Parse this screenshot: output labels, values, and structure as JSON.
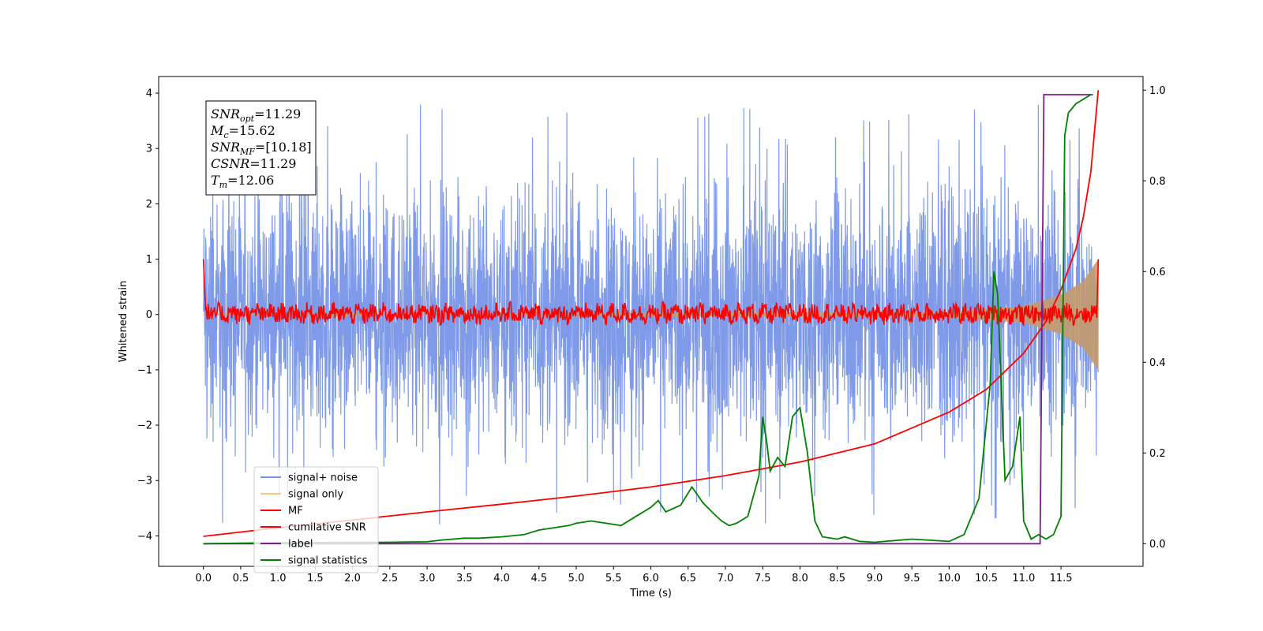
{
  "chart_data": {
    "type": "line",
    "xlabel": "Time (s)",
    "ylabel": "Whitened strain",
    "xlim": [
      -0.6,
      12.6
    ],
    "ylim": [
      -4.55,
      4.3
    ],
    "y2lim": [
      -0.05,
      1.03
    ],
    "x_ticks": [
      0.0,
      0.5,
      1.0,
      1.5,
      2.0,
      2.5,
      3.0,
      3.5,
      4.0,
      4.5,
      5.0,
      5.5,
      6.0,
      6.5,
      7.0,
      7.5,
      8.0,
      8.5,
      9.0,
      9.5,
      10.0,
      10.5,
      11.0,
      11.5
    ],
    "x_tick_labels": [
      "0.0",
      "0.5",
      "1.0",
      "1.5",
      "2.0",
      "2.5",
      "3.0",
      "3.5",
      "4.0",
      "4.5",
      "5.0",
      "5.5",
      "6.0",
      "6.5",
      "7.0",
      "7.5",
      "8.0",
      "8.5",
      "9.0",
      "9.5",
      "10.0",
      "10.5",
      "11.0",
      "11.5"
    ],
    "y_ticks": [
      4,
      3,
      2,
      1,
      0,
      -1,
      -2,
      -3,
      -4
    ],
    "y_tick_labels": [
      "4",
      "3",
      "2",
      "1",
      "0",
      "−1",
      "−2",
      "−3",
      "−4"
    ],
    "y2_ticks": [
      1.0,
      0.8,
      0.6,
      0.4,
      0.2,
      0.0
    ],
    "y2_tick_labels": [
      "1.0",
      "0.8",
      "0.6",
      "0.4",
      "0.2",
      "0.0"
    ],
    "grid": false,
    "legend_position": "lower-left",
    "annotation": {
      "lines": [
        {
          "symbol": "SNR",
          "sub": "opt",
          "value": "=11.29"
        },
        {
          "symbol": "M",
          "sub": "c",
          "value": "=15.62"
        },
        {
          "symbol": "SNR",
          "sub": "MF",
          "value": "=[10.18]"
        },
        {
          "symbol": "CSNR",
          "sub": "",
          "value": "=11.29"
        },
        {
          "symbol": "T",
          "sub": "m",
          "value": "=12.06"
        }
      ]
    },
    "series": [
      {
        "name": "signal+ noise",
        "color": "#7895e8",
        "axis": "left",
        "kind": "noise",
        "x_range": [
          0.0,
          12.0
        ],
        "typical_range": [
          -1.6,
          1.6
        ],
        "peak_range": [
          -3.9,
          3.9
        ]
      },
      {
        "name": "signal only",
        "color": "#f5c77a",
        "axis": "left",
        "kind": "chirp",
        "x_range": [
          0.0,
          12.0
        ],
        "envelope": [
          [
            0.0,
            0.0
          ],
          [
            10.0,
            0.05
          ],
          [
            11.0,
            0.15
          ],
          [
            11.5,
            0.35
          ],
          [
            11.8,
            0.6
          ],
          [
            12.0,
            1.0
          ]
        ]
      },
      {
        "name": "MF",
        "color": "#ff0000",
        "axis": "left",
        "kind": "mf",
        "x_range": [
          0.0,
          12.0
        ],
        "start_value": 1.0,
        "typical_range": [
          -0.15,
          0.2
        ],
        "end_value": 1.0
      },
      {
        "name": "cumilative SNR",
        "color": "#ff0000",
        "axis": "right",
        "x": [
          0.0,
          1.0,
          2.0,
          3.0,
          4.0,
          5.0,
          6.0,
          7.0,
          8.0,
          9.0,
          10.0,
          10.5,
          11.0,
          11.3,
          11.5,
          11.7,
          11.8,
          11.9,
          12.0
        ],
        "y": [
          0.016,
          0.035,
          0.052,
          0.07,
          0.087,
          0.105,
          0.125,
          0.15,
          0.18,
          0.22,
          0.29,
          0.34,
          0.42,
          0.49,
          0.56,
          0.65,
          0.72,
          0.82,
          1.0
        ]
      },
      {
        "name": "label",
        "color": "#7b1f8a",
        "axis": "right",
        "x": [
          0.0,
          11.22,
          11.27,
          11.93
        ],
        "y": [
          0.0,
          0.0,
          0.99,
          0.99
        ]
      },
      {
        "name": "signal statistics",
        "color": "#008000",
        "axis": "right",
        "x": [
          0.0,
          0.5,
          1.0,
          2.5,
          3.0,
          3.2,
          3.5,
          3.7,
          4.0,
          4.3,
          4.5,
          4.7,
          4.9,
          5.0,
          5.2,
          5.4,
          5.6,
          5.8,
          6.0,
          6.1,
          6.2,
          6.4,
          6.55,
          6.7,
          6.85,
          6.95,
          7.05,
          7.15,
          7.3,
          7.45,
          7.5,
          7.55,
          7.6,
          7.7,
          7.8,
          7.9,
          8.0,
          8.1,
          8.2,
          8.3,
          8.5,
          8.6,
          8.8,
          9.0,
          9.5,
          10.0,
          10.2,
          10.4,
          10.55,
          10.6,
          10.65,
          10.75,
          10.85,
          10.95,
          11.0,
          11.1,
          11.2,
          11.3,
          11.4,
          11.5,
          11.55,
          11.6,
          11.7,
          11.8,
          11.9
        ],
        "y": [
          0.0,
          0.001,
          0.002,
          0.003,
          0.004,
          0.008,
          0.012,
          0.012,
          0.015,
          0.02,
          0.03,
          0.035,
          0.04,
          0.045,
          0.05,
          0.045,
          0.04,
          0.06,
          0.08,
          0.095,
          0.07,
          0.085,
          0.125,
          0.09,
          0.065,
          0.05,
          0.04,
          0.045,
          0.06,
          0.15,
          0.28,
          0.23,
          0.16,
          0.19,
          0.17,
          0.28,
          0.3,
          0.2,
          0.05,
          0.015,
          0.01,
          0.015,
          0.005,
          0.003,
          0.01,
          0.005,
          0.02,
          0.1,
          0.35,
          0.6,
          0.55,
          0.14,
          0.17,
          0.28,
          0.05,
          0.01,
          0.02,
          0.01,
          0.02,
          0.06,
          0.9,
          0.95,
          0.97,
          0.98,
          0.99
        ]
      }
    ]
  }
}
